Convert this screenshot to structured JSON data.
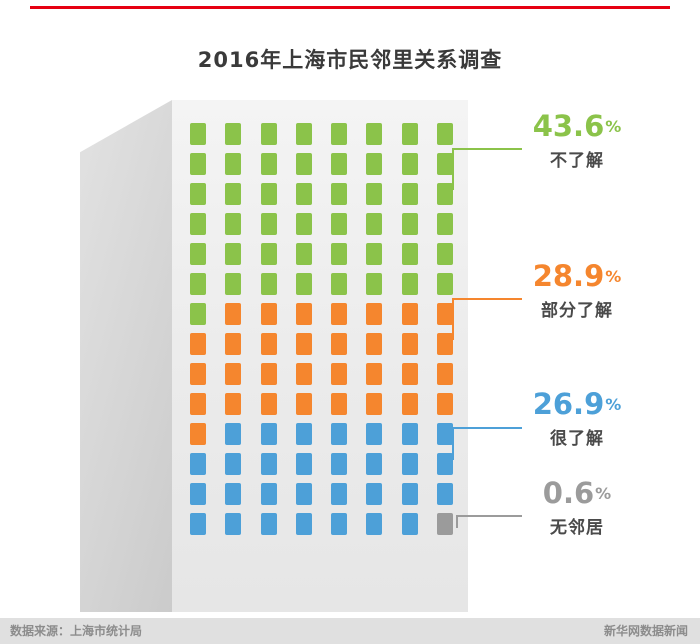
{
  "page": {
    "title": "2016年上海市民邻里关系调查",
    "accent_line_color": "#e60012"
  },
  "footer": {
    "source": "数据来源：上海市统计局",
    "credit": "新华网数据新闻",
    "bg_color": "#e0e0e0"
  },
  "chart_data": {
    "type": "pictogram-grid",
    "title": "2016年上海市民邻里关系调查",
    "description": "Building facade of window tiles; each tile is one unit of the surveyed share",
    "grid": {
      "cols": 8,
      "rows": 14,
      "total_tiles": 112
    },
    "legend_position": "right",
    "segments": [
      {
        "id": "not-know",
        "label": "不了解",
        "value": 43.6,
        "number": "43.6",
        "percent_sign": "%",
        "tiles": 49,
        "color": "#8bc34a"
      },
      {
        "id": "partly-know",
        "label": "部分了解",
        "value": 28.9,
        "number": "28.9",
        "percent_sign": "%",
        "tiles": 32,
        "color": "#f5862e"
      },
      {
        "id": "know-well",
        "label": "很了解",
        "value": 26.9,
        "number": "26.9",
        "percent_sign": "%",
        "tiles": 30,
        "color": "#4da0d8"
      },
      {
        "id": "no-neighbors",
        "label": "无邻居",
        "value": 0.6,
        "number": "0.6",
        "percent_sign": "%",
        "tiles": 1,
        "color": "#9b9b9b"
      }
    ]
  }
}
